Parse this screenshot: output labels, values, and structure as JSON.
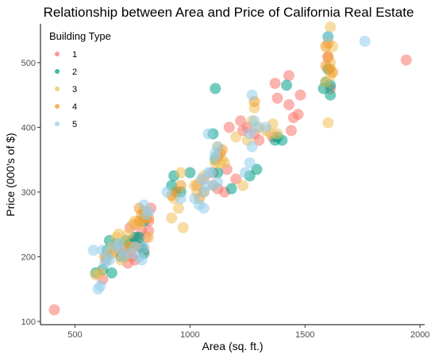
{
  "chart_data": {
    "type": "scatter",
    "title": "Relationship between Area and Price of California Real Estate",
    "xlabel": "Area (sq. ft.)",
    "ylabel": "Price (000's of $)",
    "xlim": [
      350,
      2020
    ],
    "ylim": [
      95,
      560
    ],
    "xticks": [
      500,
      1000,
      1500,
      2000
    ],
    "yticks": [
      100,
      200,
      300,
      400,
      500
    ],
    "grid": false,
    "legend": {
      "title": "Building Type",
      "position": "top-left"
    },
    "series": [
      {
        "name": "1",
        "color": "#F8766D",
        "points": [
          [
            410,
            118
          ],
          [
            620,
            165
          ],
          [
            635,
            195
          ],
          [
            700,
            205
          ],
          [
            720,
            215
          ],
          [
            740,
            210
          ],
          [
            745,
            225
          ],
          [
            750,
            200
          ],
          [
            760,
            195
          ],
          [
            770,
            230
          ],
          [
            780,
            215
          ],
          [
            790,
            240
          ],
          [
            800,
            210
          ],
          [
            810,
            230
          ],
          [
            820,
            240
          ],
          [
            820,
            255
          ],
          [
            830,
            275
          ],
          [
            740,
            245
          ],
          [
            760,
            250
          ],
          [
            730,
            190
          ],
          [
            1030,
            310
          ],
          [
            1060,
            320
          ],
          [
            1100,
            330
          ],
          [
            1120,
            305
          ],
          [
            1150,
            300
          ],
          [
            1160,
            335
          ],
          [
            1170,
            400
          ],
          [
            1200,
            320
          ],
          [
            1220,
            410
          ],
          [
            1230,
            395
          ],
          [
            1250,
            400
          ],
          [
            1280,
            390
          ],
          [
            1300,
            380
          ],
          [
            1360,
            385
          ],
          [
            1370,
            468
          ],
          [
            1380,
            445
          ],
          [
            1430,
            480
          ],
          [
            1430,
            435
          ],
          [
            1440,
            395
          ],
          [
            1450,
            415
          ],
          [
            1470,
            420
          ],
          [
            1480,
            450
          ],
          [
            1600,
            508
          ],
          [
            1610,
            460
          ],
          [
            1940,
            504
          ]
        ]
      },
      {
        "name": "2",
        "color": "#00A087",
        "points": [
          [
            590,
            175
          ],
          [
            620,
            180
          ],
          [
            640,
            210
          ],
          [
            650,
            225
          ],
          [
            660,
            175
          ],
          [
            680,
            220
          ],
          [
            700,
            200
          ],
          [
            720,
            225
          ],
          [
            740,
            220
          ],
          [
            760,
            230
          ],
          [
            780,
            230
          ],
          [
            790,
            215
          ],
          [
            800,
            205
          ],
          [
            800,
            255
          ],
          [
            920,
            310
          ],
          [
            930,
            325
          ],
          [
            940,
            300
          ],
          [
            960,
            300
          ],
          [
            1000,
            330
          ],
          [
            1100,
            390
          ],
          [
            1110,
            350
          ],
          [
            1120,
            330
          ],
          [
            1180,
            305
          ],
          [
            1260,
            325
          ],
          [
            1290,
            335
          ],
          [
            1370,
            380
          ],
          [
            1380,
            385
          ],
          [
            1400,
            380
          ],
          [
            1420,
            465
          ],
          [
            1580,
            460
          ],
          [
            1590,
            470
          ],
          [
            1600,
            540
          ],
          [
            1600,
            490
          ],
          [
            1610,
            450
          ],
          [
            1610,
            465
          ],
          [
            1110,
            460
          ]
        ]
      },
      {
        "name": "3",
        "color": "#F0C05A",
        "points": [
          [
            590,
            172
          ],
          [
            610,
            175
          ],
          [
            640,
            200
          ],
          [
            650,
            205
          ],
          [
            660,
            215
          ],
          [
            680,
            230
          ],
          [
            690,
            235
          ],
          [
            700,
            195
          ],
          [
            720,
            220
          ],
          [
            730,
            235
          ],
          [
            750,
            250
          ],
          [
            760,
            255
          ],
          [
            780,
            250
          ],
          [
            800,
            260
          ],
          [
            820,
            230
          ],
          [
            920,
            260
          ],
          [
            930,
            290
          ],
          [
            950,
            275
          ],
          [
            960,
            330
          ],
          [
            970,
            245
          ],
          [
            1020,
            310
          ],
          [
            1030,
            300
          ],
          [
            1040,
            315
          ],
          [
            1060,
            325
          ],
          [
            1110,
            345
          ],
          [
            1120,
            370
          ],
          [
            1130,
            345
          ],
          [
            1140,
            350
          ],
          [
            1150,
            345
          ],
          [
            1200,
            385
          ],
          [
            1230,
            310
          ],
          [
            1250,
            380
          ],
          [
            1270,
            410
          ],
          [
            1280,
            430
          ],
          [
            1300,
            400
          ],
          [
            1330,
            395
          ],
          [
            1350,
            390
          ],
          [
            1360,
            405
          ],
          [
            1380,
            390
          ],
          [
            1590,
            470
          ],
          [
            1600,
            407
          ],
          [
            1610,
            480
          ],
          [
            1610,
            500
          ],
          [
            1620,
            525
          ],
          [
            1610,
            555
          ]
        ]
      },
      {
        "name": "4",
        "color": "#F39B29",
        "points": [
          [
            630,
            200
          ],
          [
            660,
            205
          ],
          [
            680,
            215
          ],
          [
            700,
            210
          ],
          [
            720,
            200
          ],
          [
            740,
            215
          ],
          [
            760,
            215
          ],
          [
            780,
            255
          ],
          [
            780,
            275
          ],
          [
            790,
            265
          ],
          [
            800,
            270
          ],
          [
            810,
            260
          ],
          [
            820,
            260
          ],
          [
            920,
            295
          ],
          [
            940,
            300
          ],
          [
            960,
            310
          ],
          [
            1040,
            290
          ],
          [
            1060,
            300
          ],
          [
            1100,
            310
          ],
          [
            1120,
            355
          ],
          [
            1130,
            360
          ],
          [
            1140,
            365
          ],
          [
            1280,
            440
          ],
          [
            1590,
            525
          ],
          [
            1600,
            530
          ],
          [
            1600,
            510
          ],
          [
            1610,
            490
          ],
          [
            1620,
            485
          ],
          [
            1590,
            495
          ]
        ]
      },
      {
        "name": "5",
        "color": "#91CDEB",
        "points": [
          [
            580,
            210
          ],
          [
            600,
            150
          ],
          [
            610,
            155
          ],
          [
            620,
            210
          ],
          [
            630,
            190
          ],
          [
            640,
            200
          ],
          [
            650,
            195
          ],
          [
            670,
            215
          ],
          [
            690,
            220
          ],
          [
            700,
            210
          ],
          [
            710,
            200
          ],
          [
            740,
            205
          ],
          [
            760,
            215
          ],
          [
            780,
            200
          ],
          [
            790,
            195
          ],
          [
            800,
            215
          ],
          [
            800,
            280
          ],
          [
            810,
            265
          ],
          [
            820,
            270
          ],
          [
            900,
            300
          ],
          [
            960,
            290
          ],
          [
            1020,
            290
          ],
          [
            1040,
            280
          ],
          [
            1060,
            300
          ],
          [
            1060,
            275
          ],
          [
            1080,
            390
          ],
          [
            1080,
            330
          ],
          [
            1090,
            330
          ],
          [
            1100,
            310
          ],
          [
            1110,
            360
          ],
          [
            1120,
            370
          ],
          [
            1120,
            315
          ],
          [
            1240,
            330
          ],
          [
            1260,
            345
          ],
          [
            1260,
            390
          ],
          [
            1270,
            370
          ],
          [
            1270,
            450
          ],
          [
            1280,
            410
          ],
          [
            1290,
            400
          ],
          [
            1330,
            400
          ],
          [
            1600,
            540
          ],
          [
            1760,
            533
          ],
          [
            1050,
            320
          ],
          [
            1070,
            310
          ],
          [
            1110,
            355
          ]
        ]
      }
    ]
  }
}
